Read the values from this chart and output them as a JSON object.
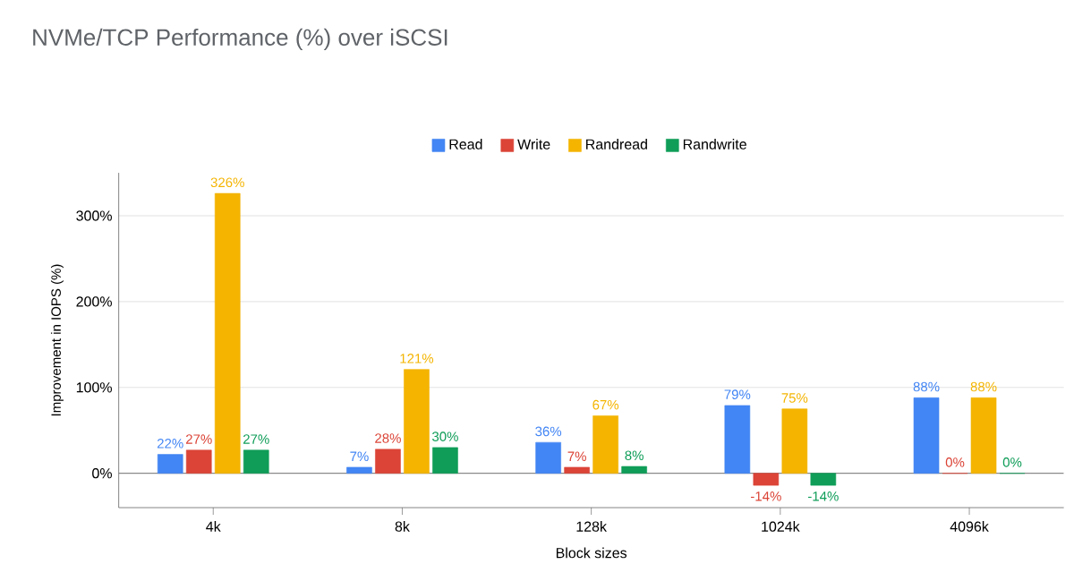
{
  "chart_data": {
    "type": "bar",
    "title": "NVMe/TCP Performance (%) over iSCSI",
    "xlabel": "Block sizes",
    "ylabel": "Improvement in IOPS (%)",
    "categories": [
      "4k",
      "8k",
      "128k",
      "1024k",
      "4096k"
    ],
    "series": [
      {
        "name": "Read",
        "color": "#4285f4",
        "values": [
          22,
          7,
          36,
          79,
          88
        ],
        "value_labels": [
          "22%",
          "7%",
          "36%",
          "79%",
          "88%"
        ]
      },
      {
        "name": "Write",
        "color": "#db4437",
        "values": [
          27,
          28,
          7,
          -14,
          0
        ],
        "value_labels": [
          "27%",
          "28%",
          "7%",
          "-14%",
          "0%"
        ]
      },
      {
        "name": "Randread",
        "color": "#f4b400",
        "values": [
          326,
          121,
          67,
          75,
          88
        ],
        "value_labels": [
          "326%",
          "121%",
          "67%",
          "75%",
          "88%"
        ]
      },
      {
        "name": "Randwrite",
        "color": "#0f9d58",
        "values": [
          27,
          30,
          8,
          -14,
          0
        ],
        "value_labels": [
          "27%",
          "30%",
          "8%",
          "-14%",
          "0%"
        ]
      }
    ],
    "ylim": [
      -40,
      350
    ],
    "yticks": [
      {
        "value": 0,
        "label": "0%"
      },
      {
        "value": 100,
        "label": "100%"
      },
      {
        "value": 200,
        "label": "200%"
      },
      {
        "value": 300,
        "label": "300%"
      }
    ],
    "grid": "y",
    "legend": "top"
  }
}
